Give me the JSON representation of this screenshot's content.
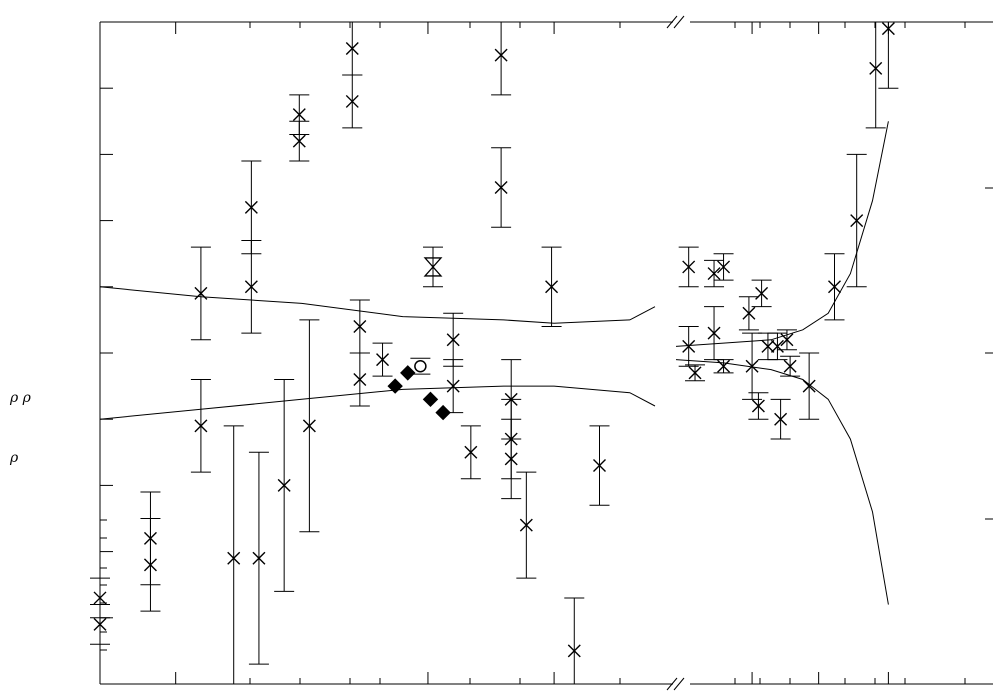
{
  "chart_data": {
    "type": "scatter",
    "title": "",
    "xlabel": "",
    "ylabel": "ρ ρ",
    "ylabel_lower": "ρ",
    "y_tick_count_left": 11,
    "x_axis_break": true,
    "left_panel": {
      "xlim": [
        0,
        22
      ],
      "ylim": [
        0,
        10
      ],
      "x_ticks": [
        3,
        13,
        18
      ],
      "cross_points": [
        {
          "x": 0.0,
          "y": 1.3,
          "err": 0.3
        },
        {
          "x": 0.0,
          "y": 0.9,
          "err": 0.3
        },
        {
          "x": 2.0,
          "y": 2.2,
          "err": 0.7
        },
        {
          "x": 2.0,
          "y": 1.8,
          "err": 0.7
        },
        {
          "x": 4.0,
          "y": 5.9,
          "err": 0.7
        },
        {
          "x": 4.0,
          "y": 3.9,
          "err": 0.7
        },
        {
          "x": 5.3,
          "y": 1.9,
          "err": 2.0
        },
        {
          "x": 6.0,
          "y": 7.2,
          "err": 0.7
        },
        {
          "x": 6.0,
          "y": 6.0,
          "err": 0.7
        },
        {
          "x": 6.3,
          "y": 1.9,
          "err": 1.6
        },
        {
          "x": 7.3,
          "y": 3.0,
          "err": 1.6
        },
        {
          "x": 7.9,
          "y": 8.6,
          "err": 0.3
        },
        {
          "x": 7.9,
          "y": 8.2,
          "err": 0.3
        },
        {
          "x": 8.3,
          "y": 3.9,
          "err": 1.6
        },
        {
          "x": 10.0,
          "y": 9.6,
          "err": 0.4
        },
        {
          "x": 10.0,
          "y": 8.8,
          "err": 0.4
        },
        {
          "x": 10.3,
          "y": 5.4,
          "err": 0.4
        },
        {
          "x": 10.3,
          "y": 4.6,
          "err": 0.4
        },
        {
          "x": 11.2,
          "y": 4.9,
          "err": 0.25
        },
        {
          "x": 14.0,
          "y": 5.2,
          "err": 0.4
        },
        {
          "x": 14.0,
          "y": 4.5,
          "err": 0.4
        },
        {
          "x": 14.7,
          "y": 3.5,
          "err": 0.4
        },
        {
          "x": 15.9,
          "y": 9.5,
          "err": 0.6
        },
        {
          "x": 15.9,
          "y": 7.5,
          "err": 0.6
        },
        {
          "x": 16.3,
          "y": 4.3,
          "err": 0.6
        },
        {
          "x": 16.3,
          "y": 3.7,
          "err": 0.6
        },
        {
          "x": 16.3,
          "y": 3.4,
          "err": 0.6
        },
        {
          "x": 16.9,
          "y": 2.4,
          "err": 0.8
        },
        {
          "x": 17.9,
          "y": 6.0,
          "err": 0.6
        },
        {
          "x": 18.8,
          "y": 0.5,
          "err": 0.8
        },
        {
          "x": 19.8,
          "y": 3.3,
          "err": 0.6
        }
      ],
      "diamond_points": [
        {
          "x": 11.7,
          "y": 4.5
        },
        {
          "x": 12.2,
          "y": 4.7
        },
        {
          "x": 13.1,
          "y": 4.3
        },
        {
          "x": 13.6,
          "y": 4.1
        }
      ],
      "circle_points": [
        {
          "x": 12.7,
          "y": 4.8,
          "err": 0.12
        }
      ],
      "hourglass_points": [
        {
          "x": 13.2,
          "y": 6.3,
          "err": 0.3
        }
      ],
      "band_upper": [
        [
          0,
          6.0
        ],
        [
          4,
          5.85
        ],
        [
          8,
          5.75
        ],
        [
          12,
          5.55
        ],
        [
          16,
          5.5
        ],
        [
          18,
          5.45
        ],
        [
          21,
          5.5
        ],
        [
          22,
          5.7
        ]
      ],
      "band_lower": [
        [
          0,
          4.0
        ],
        [
          4,
          4.15
        ],
        [
          8,
          4.3
        ],
        [
          12,
          4.45
        ],
        [
          16,
          4.5
        ],
        [
          18,
          4.5
        ],
        [
          21,
          4.4
        ],
        [
          22,
          4.2
        ]
      ]
    },
    "right_panel": {
      "xlim": [
        0,
        10
      ],
      "ylim": [
        0,
        10
      ],
      "x_ticks": [
        2.4,
        4.5,
        6.7
      ],
      "cross_points": [
        {
          "x": 0.4,
          "y": 6.3,
          "err": 0.3
        },
        {
          "x": 0.4,
          "y": 5.1,
          "err": 0.3
        },
        {
          "x": 0.6,
          "y": 4.7,
          "err": 0.12
        },
        {
          "x": 1.2,
          "y": 6.2,
          "err": 0.2
        },
        {
          "x": 1.5,
          "y": 6.3,
          "err": 0.2
        },
        {
          "x": 1.5,
          "y": 4.8,
          "err": 0.1
        },
        {
          "x": 1.2,
          "y": 5.3,
          "err": 0.4
        },
        {
          "x": 2.3,
          "y": 5.6,
          "err": 0.25
        },
        {
          "x": 2.4,
          "y": 4.8,
          "err": 0.5
        },
        {
          "x": 2.6,
          "y": 4.2,
          "err": 0.2
        },
        {
          "x": 2.7,
          "y": 5.9,
          "err": 0.2
        },
        {
          "x": 2.9,
          "y": 5.1,
          "err": 0.2
        },
        {
          "x": 3.2,
          "y": 5.1,
          "err": 0.2
        },
        {
          "x": 3.3,
          "y": 4.0,
          "err": 0.3
        },
        {
          "x": 3.5,
          "y": 5.2,
          "err": 0.15
        },
        {
          "x": 3.6,
          "y": 4.8,
          "err": 0.15
        },
        {
          "x": 4.2,
          "y": 4.5,
          "err": 0.5
        },
        {
          "x": 5.0,
          "y": 6.0,
          "err": 0.5
        },
        {
          "x": 5.7,
          "y": 7.0,
          "err": 1.0
        },
        {
          "x": 6.3,
          "y": 9.3,
          "err": 0.9
        },
        {
          "x": 6.7,
          "y": 9.9,
          "err": 0.9
        }
      ],
      "band_upper": [
        [
          0,
          5.1
        ],
        [
          1.5,
          5.15
        ],
        [
          3,
          5.2
        ],
        [
          4,
          5.35
        ],
        [
          4.8,
          5.6
        ],
        [
          5.5,
          6.2
        ],
        [
          6.2,
          7.3
        ],
        [
          6.7,
          8.5
        ]
      ],
      "band_lower": [
        [
          0,
          4.9
        ],
        [
          1.5,
          4.85
        ],
        [
          3,
          4.75
        ],
        [
          4,
          4.6
        ],
        [
          4.8,
          4.3
        ],
        [
          5.5,
          3.7
        ],
        [
          6.2,
          2.6
        ],
        [
          6.7,
          1.2
        ]
      ]
    }
  }
}
